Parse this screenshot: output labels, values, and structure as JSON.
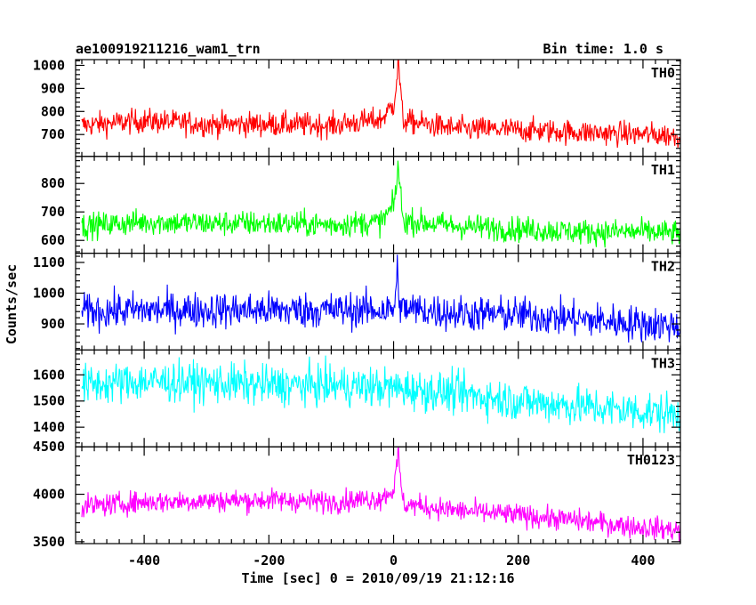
{
  "chart_data": {
    "type": "line",
    "title_left": "ae100919211216_wam1_trn",
    "title_right": "Bin time: 1.0 s",
    "xlabel": "Time [sec] 0 = 2010/09/19 21:12:16",
    "ylabel": "Counts/sec",
    "x_range": [
      -510,
      460
    ],
    "x_ticks": [
      -400,
      -200,
      0,
      200,
      400
    ],
    "bin_time": 1.0,
    "panels": [
      {
        "name": "TH0",
        "color": "#ff0000",
        "ylim": [
          605,
          1025
        ],
        "yticks": [
          700,
          800,
          900,
          1000
        ],
        "series": [
          {
            "x": -500,
            "y": 740
          },
          {
            "x": -400,
            "y": 760
          },
          {
            "x": -300,
            "y": 745
          },
          {
            "x": -200,
            "y": 745
          },
          {
            "x": -100,
            "y": 740
          },
          {
            "x": -20,
            "y": 765
          },
          {
            "x": 0,
            "y": 830
          },
          {
            "x": 8,
            "y": 1000
          },
          {
            "x": 15,
            "y": 760
          },
          {
            "x": 100,
            "y": 725
          },
          {
            "x": 200,
            "y": 720
          },
          {
            "x": 300,
            "y": 710
          },
          {
            "x": 400,
            "y": 700
          },
          {
            "x": 460,
            "y": 695
          }
        ],
        "noise": 38,
        "peak": {
          "x": 8,
          "y": 1025
        }
      },
      {
        "name": "TH1",
        "color": "#00ff00",
        "ylim": [
          555,
          895
        ],
        "yticks": [
          600,
          700,
          800
        ],
        "series": [
          {
            "x": -500,
            "y": 650
          },
          {
            "x": -400,
            "y": 665
          },
          {
            "x": -300,
            "y": 660
          },
          {
            "x": -200,
            "y": 660
          },
          {
            "x": -100,
            "y": 655
          },
          {
            "x": -20,
            "y": 665
          },
          {
            "x": 0,
            "y": 720
          },
          {
            "x": 8,
            "y": 850
          },
          {
            "x": 15,
            "y": 670
          },
          {
            "x": 100,
            "y": 650
          },
          {
            "x": 200,
            "y": 640
          },
          {
            "x": 300,
            "y": 630
          },
          {
            "x": 400,
            "y": 630
          },
          {
            "x": 460,
            "y": 625
          }
        ],
        "noise": 32,
        "peak": {
          "x": 7,
          "y": 880
        }
      },
      {
        "name": "TH2",
        "color": "#0000ff",
        "ylim": [
          815,
          1130
        ],
        "yticks": [
          900,
          1000,
          1100
        ],
        "series": [
          {
            "x": -500,
            "y": 940
          },
          {
            "x": -400,
            "y": 945
          },
          {
            "x": -300,
            "y": 945
          },
          {
            "x": -200,
            "y": 945
          },
          {
            "x": -100,
            "y": 945
          },
          {
            "x": 0,
            "y": 945
          },
          {
            "x": 6,
            "y": 1040
          },
          {
            "x": 12,
            "y": 950
          },
          {
            "x": 100,
            "y": 935
          },
          {
            "x": 200,
            "y": 930
          },
          {
            "x": 300,
            "y": 915
          },
          {
            "x": 400,
            "y": 900
          },
          {
            "x": 460,
            "y": 895
          }
        ],
        "noise": 42,
        "peak": {
          "x": 6,
          "y": 1125
        }
      },
      {
        "name": "TH3",
        "color": "#00ffff",
        "ylim": [
          1325,
          1695
        ],
        "yticks": [
          1400,
          1500,
          1600
        ],
        "series": [
          {
            "x": -500,
            "y": 1560
          },
          {
            "x": -400,
            "y": 1575
          },
          {
            "x": -300,
            "y": 1570
          },
          {
            "x": -200,
            "y": 1560
          },
          {
            "x": -100,
            "y": 1560
          },
          {
            "x": 0,
            "y": 1550
          },
          {
            "x": 100,
            "y": 1530
          },
          {
            "x": 200,
            "y": 1500
          },
          {
            "x": 300,
            "y": 1480
          },
          {
            "x": 400,
            "y": 1460
          },
          {
            "x": 460,
            "y": 1450
          }
        ],
        "noise": 55,
        "peak": null
      },
      {
        "name": "TH0123",
        "color": "#ff00ff",
        "ylim": [
          3480,
          4500
        ],
        "yticks": [
          3500,
          4000,
          4500
        ],
        "series": [
          {
            "x": -500,
            "y": 3870
          },
          {
            "x": -400,
            "y": 3920
          },
          {
            "x": -300,
            "y": 3930
          },
          {
            "x": -200,
            "y": 3940
          },
          {
            "x": -100,
            "y": 3920
          },
          {
            "x": -20,
            "y": 3960
          },
          {
            "x": 0,
            "y": 4050
          },
          {
            "x": 8,
            "y": 4400
          },
          {
            "x": 15,
            "y": 3900
          },
          {
            "x": 100,
            "y": 3830
          },
          {
            "x": 200,
            "y": 3780
          },
          {
            "x": 300,
            "y": 3720
          },
          {
            "x": 400,
            "y": 3650
          },
          {
            "x": 460,
            "y": 3620
          }
        ],
        "noise": 85,
        "peak": {
          "x": 7,
          "y": 4480
        }
      }
    ]
  }
}
